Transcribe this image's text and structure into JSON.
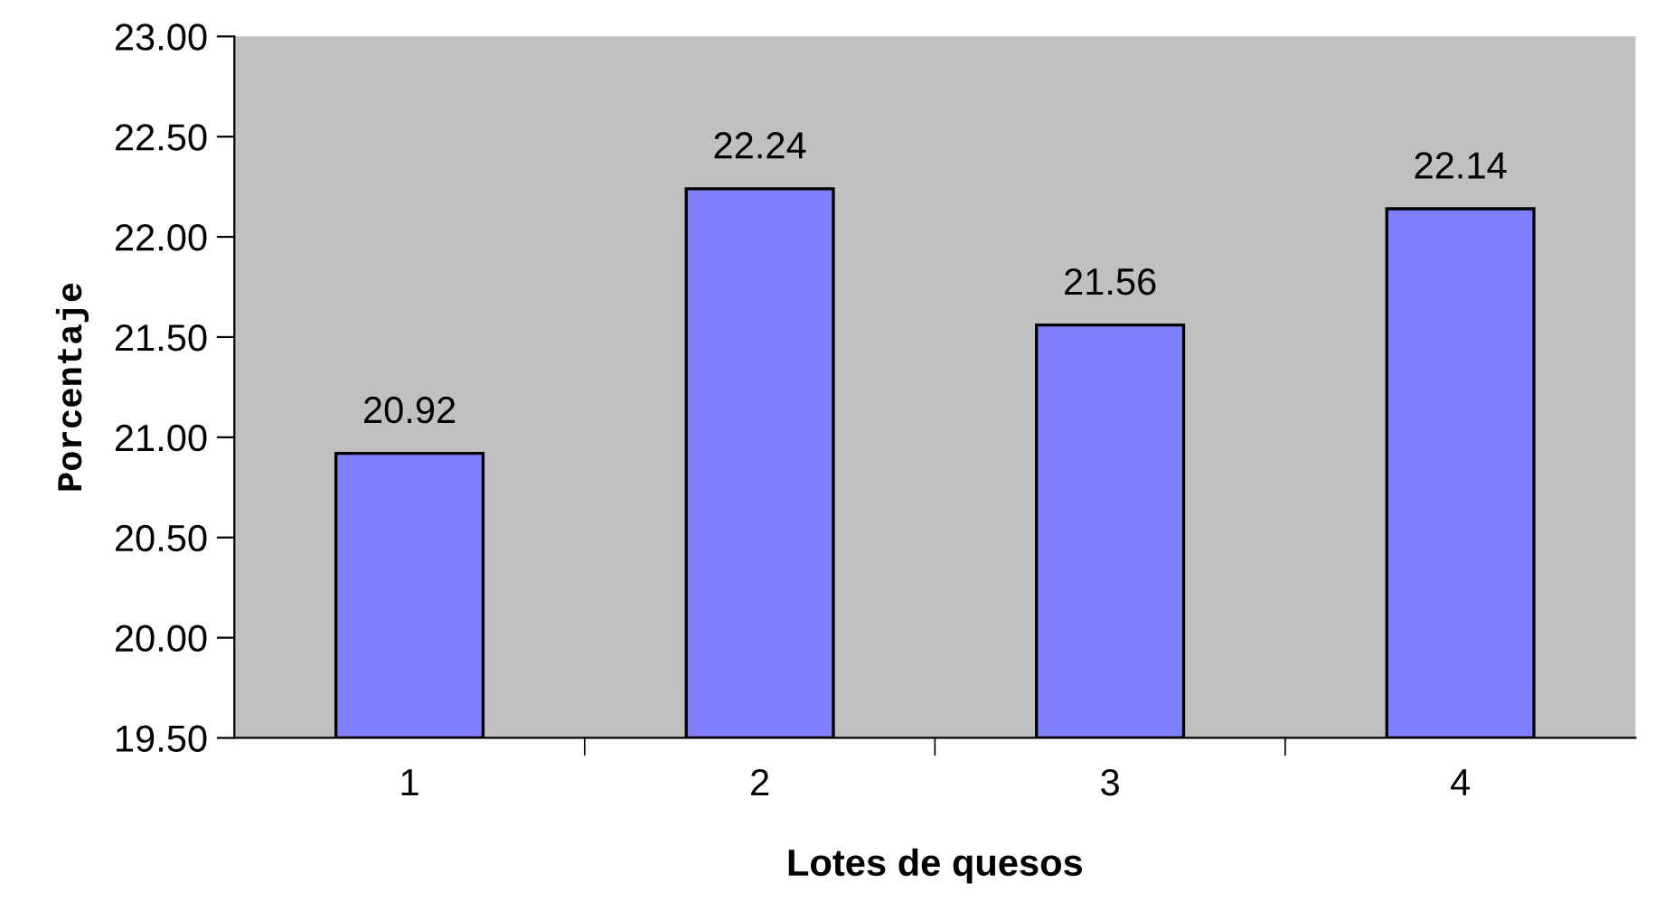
{
  "chart_data": {
    "type": "bar",
    "xlabel": "Lotes de quesos",
    "ylabel": "Porcentaje",
    "categories": [
      "1",
      "2",
      "3",
      "4"
    ],
    "values": [
      20.92,
      22.24,
      21.56,
      22.14
    ],
    "color": "#8080ff",
    "ylim": [
      19.5,
      23.0
    ],
    "yticks": [
      {
        "value": 19.5,
        "label": "19.50"
      },
      {
        "value": 20.0,
        "label": "20.00"
      },
      {
        "value": 20.5,
        "label": "20.50"
      },
      {
        "value": 21.0,
        "label": "21.00"
      },
      {
        "value": 21.5,
        "label": "21.50"
      },
      {
        "value": 22.0,
        "label": "22.00"
      },
      {
        "value": 22.5,
        "label": "22.50"
      },
      {
        "value": 23.0,
        "label": "23.00"
      }
    ],
    "data_labels": true,
    "grid": false,
    "legend": false
  }
}
